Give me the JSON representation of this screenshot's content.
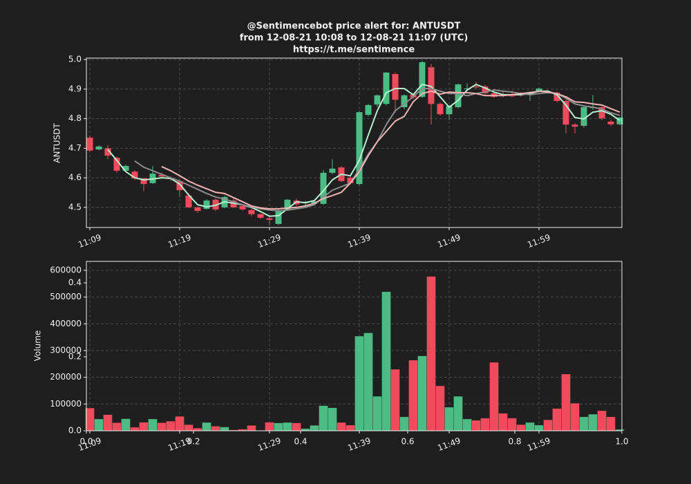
{
  "chart_data": [
    {
      "type": "candlestick",
      "title": "@Sentimencebot price alert for: ANTUSDT",
      "subtitle": "from 12-08-21 10:08 to 12-08-21 11:07 (UTC)",
      "source": "https://t.me/sentimence",
      "ylabel": "ANTUSDT",
      "categories": [
        "11:09",
        null,
        null,
        null,
        null,
        null,
        null,
        null,
        null,
        null,
        "11:19",
        null,
        null,
        null,
        null,
        null,
        null,
        null,
        null,
        null,
        "11:29",
        null,
        null,
        null,
        null,
        null,
        null,
        null,
        null,
        null,
        "11:39",
        null,
        null,
        null,
        null,
        null,
        null,
        null,
        null,
        null,
        "11:49",
        null,
        null,
        null,
        null,
        null,
        null,
        null,
        null,
        null,
        "11:59",
        null,
        null,
        null,
        null,
        null,
        null,
        null,
        null,
        null
      ],
      "open": [
        4.736,
        4.696,
        4.7,
        4.668,
        4.624,
        4.621,
        4.598,
        4.582,
        4.61,
        4.6,
        4.589,
        4.54,
        4.5,
        4.495,
        4.526,
        4.5,
        4.523,
        4.505,
        4.491,
        4.477,
        4.463,
        4.444,
        4.491,
        4.523,
        4.514,
        4.514,
        4.512,
        4.617,
        4.635,
        4.6,
        4.579,
        4.813,
        4.848,
        4.85,
        4.951,
        4.839,
        4.882,
        4.874,
        4.974,
        4.85,
        4.815,
        4.839,
        4.9,
        4.909,
        4.909,
        4.886,
        4.88,
        4.878,
        4.884,
        4.883,
        4.893,
        4.893,
        4.888,
        4.86,
        4.78,
        4.776,
        4.836,
        4.839,
        4.79,
        4.781
      ],
      "high": [
        4.743,
        4.71,
        4.71,
        4.672,
        4.645,
        4.625,
        4.6,
        4.64,
        4.618,
        4.605,
        4.595,
        4.548,
        4.503,
        4.528,
        4.53,
        4.54,
        4.53,
        4.51,
        4.495,
        4.48,
        4.468,
        4.492,
        4.528,
        4.53,
        4.522,
        4.524,
        4.626,
        4.663,
        4.64,
        4.61,
        4.826,
        4.85,
        4.882,
        4.958,
        4.956,
        4.882,
        4.885,
        4.995,
        4.985,
        4.855,
        4.846,
        4.919,
        4.92,
        4.925,
        4.915,
        4.89,
        4.893,
        4.895,
        4.89,
        4.893,
        4.905,
        4.898,
        4.892,
        4.865,
        4.784,
        4.842,
        4.88,
        4.842,
        4.795,
        4.806
      ],
      "low": [
        4.688,
        4.693,
        4.663,
        4.618,
        4.62,
        4.593,
        4.555,
        4.58,
        4.6,
        4.59,
        4.535,
        4.498,
        4.482,
        4.492,
        4.488,
        4.497,
        4.498,
        4.49,
        4.47,
        4.46,
        4.44,
        4.44,
        4.488,
        4.505,
        4.505,
        4.51,
        4.508,
        4.612,
        4.585,
        4.578,
        4.575,
        4.808,
        4.84,
        4.845,
        4.82,
        4.832,
        4.866,
        4.87,
        4.78,
        4.81,
        4.795,
        4.835,
        4.895,
        4.9,
        4.88,
        4.87,
        4.872,
        4.872,
        4.875,
        4.86,
        4.89,
        4.885,
        4.855,
        4.75,
        4.75,
        4.77,
        4.83,
        4.795,
        4.775,
        4.778
      ],
      "close": [
        4.692,
        4.706,
        4.675,
        4.624,
        4.64,
        4.598,
        4.579,
        4.614,
        4.604,
        4.596,
        4.558,
        4.5,
        4.488,
        4.523,
        4.493,
        4.535,
        4.5,
        4.493,
        4.477,
        4.465,
        4.458,
        4.488,
        4.526,
        4.51,
        4.518,
        4.52,
        4.617,
        4.631,
        4.589,
        4.582,
        4.822,
        4.846,
        4.879,
        4.956,
        4.864,
        4.879,
        4.872,
        4.991,
        4.85,
        4.815,
        4.843,
        4.916,
        4.902,
        4.906,
        4.886,
        4.874,
        4.878,
        4.876,
        4.88,
        4.89,
        4.902,
        4.888,
        4.86,
        4.78,
        4.773,
        4.839,
        4.84,
        4.801,
        4.781,
        4.804
      ],
      "up_color": "#4dbb84",
      "down_color": "#ef4b5c",
      "series": [
        {
          "color": "#b4f0d0",
          "values": [
            null,
            null,
            4.696,
            4.659,
            4.621,
            4.6,
            4.593,
            4.596,
            4.6,
            4.598,
            4.579,
            4.542,
            4.509,
            4.502,
            4.507,
            4.519,
            4.514,
            4.509,
            4.5,
            4.486,
            4.47,
            4.472,
            4.495,
            4.519,
            4.516,
            4.523,
            4.556,
            4.593,
            4.612,
            4.607,
            4.659,
            4.745,
            4.827,
            4.888,
            4.902,
            4.902,
            4.881,
            4.916,
            4.909,
            4.874,
            4.839,
            4.862,
            4.897,
            4.916,
            4.904,
            4.89,
            4.881,
            4.881,
            4.881,
            4.885,
            4.893,
            4.893,
            4.881,
            4.846,
            4.804,
            4.799,
            4.822,
            4.827,
            4.815,
            4.794
          ]
        },
        {
          "color": "#8c8c8c",
          "values": [
            null,
            null,
            null,
            null,
            null,
            4.657,
            4.636,
            4.624,
            4.612,
            4.6,
            4.589,
            4.575,
            4.561,
            4.547,
            4.535,
            4.528,
            4.519,
            4.509,
            4.502,
            4.495,
            4.491,
            4.488,
            4.491,
            4.495,
            4.5,
            4.509,
            4.535,
            4.558,
            4.57,
            4.582,
            4.629,
            4.68,
            4.722,
            4.78,
            4.827,
            4.85,
            4.874,
            4.902,
            4.902,
            4.893,
            4.885,
            4.885,
            4.878,
            4.885,
            4.89,
            4.897,
            4.893,
            4.89,
            4.885,
            4.881,
            4.885,
            4.888,
            4.885,
            4.869,
            4.85,
            4.843,
            4.839,
            4.832,
            4.82,
            4.811
          ]
        },
        {
          "color": "#f0b4b4",
          "values": [
            null,
            null,
            null,
            null,
            null,
            null,
            null,
            null,
            4.638,
            4.624,
            4.607,
            4.589,
            4.575,
            4.563,
            4.551,
            4.547,
            4.533,
            4.519,
            4.505,
            4.498,
            4.495,
            4.495,
            4.498,
            4.5,
            4.505,
            4.514,
            4.53,
            4.54,
            4.551,
            4.582,
            4.621,
            4.675,
            4.722,
            4.757,
            4.792,
            4.808,
            4.857,
            4.885,
            4.893,
            4.883,
            4.89,
            4.888,
            4.888,
            4.885,
            4.878,
            4.878,
            4.878,
            4.881,
            4.885,
            4.888,
            4.893,
            4.89,
            4.885,
            4.874,
            4.857,
            4.855,
            4.85,
            4.846,
            4.834,
            4.822
          ]
        }
      ],
      "ylim": [
        4.432,
        5.005
      ],
      "yticks": [
        4.5,
        4.6,
        4.7,
        4.8,
        4.9,
        {
          "value": 5,
          "label": "5.0"
        }
      ],
      "grid": true
    },
    {
      "type": "bar",
      "ylabel": "Volume",
      "values": [
        85000,
        44000,
        60000,
        30000,
        45000,
        13000,
        32000,
        44000,
        30000,
        36000,
        54000,
        23000,
        10000,
        31000,
        17000,
        14000,
        3000,
        6000,
        20000,
        1000,
        32000,
        29000,
        31000,
        29000,
        8000,
        20000,
        94000,
        86000,
        31000,
        21000,
        354000,
        366000,
        129000,
        520000,
        230000,
        52000,
        264000,
        280000,
        577000,
        168000,
        88000,
        129000,
        44000,
        39000,
        47000,
        256000,
        65000,
        47000,
        23000,
        31000,
        21000,
        41000,
        83000,
        212000,
        103000,
        52000,
        62000,
        75000,
        52000,
        5000
      ],
      "ylim": [
        0,
        633600
      ],
      "yticks": [
        {
          "value": 0,
          "label": "0.0"
        },
        100000,
        200000,
        300000,
        400000,
        500000,
        600000
      ],
      "overlay_xlim": [
        0,
        1
      ],
      "overlay_xticks": [
        {
          "value": 0,
          "label": "0.0"
        },
        0.2,
        0.4,
        0.6,
        0.8,
        {
          "value": 1,
          "label": "1.0"
        }
      ],
      "overlay_ylim": [
        0,
        0.458
      ],
      "overlay_yticks": [
        0.2,
        0.4
      ],
      "grid": true
    }
  ]
}
